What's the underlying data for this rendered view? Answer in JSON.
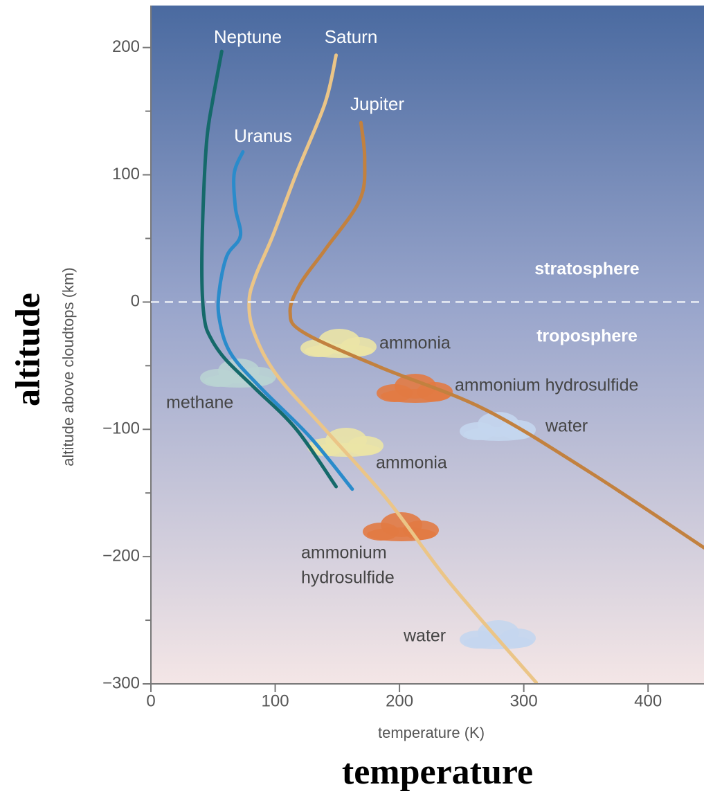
{
  "chart_data": {
    "type": "line",
    "xlabel": "temperature (K)",
    "ylabel": "altitude above cloudtops (km)",
    "outer_xlabel": "temperature",
    "outer_ylabel": "altitude",
    "xlim": [
      0,
      445
    ],
    "ylim": [
      -300,
      233
    ],
    "xticks": [
      0,
      100,
      200,
      300,
      400
    ],
    "yticks": [
      {
        "value": -300,
        "label": "−300"
      },
      {
        "value": -200,
        "label": "−200"
      },
      {
        "value": -100,
        "label": "−100"
      },
      0,
      100,
      200
    ],
    "y_minor_ticks": [
      -250,
      -150,
      -50,
      50,
      150
    ],
    "hline": 0,
    "region_labels": [
      "stratosphere",
      "troposphere"
    ],
    "annotations": [
      [
        "methane"
      ],
      [
        "ammonia"
      ],
      [
        "ammonium hydrosulfide"
      ],
      [
        "water"
      ],
      [
        "ammonia"
      ],
      [
        "ammonium",
        "hydrosulfide"
      ],
      [
        "water"
      ]
    ],
    "series": [
      {
        "name": "Neptune",
        "color": "#15696a",
        "x": [
          57,
          50,
          45,
          42,
          41,
          43,
          48,
          60,
          84,
          117,
          149
        ],
        "y": [
          197,
          160,
          128,
          74,
          20,
          -13,
          -28,
          -45,
          -68,
          -100,
          -145
        ]
      },
      {
        "name": "Saturn",
        "color": "#ebc587",
        "x": [
          149,
          140,
          117,
          98,
          84,
          79,
          83,
          101,
          140,
          190,
          240,
          310
        ],
        "y": [
          194,
          156,
          101,
          52,
          20,
          0,
          -24,
          -57,
          -100,
          -155,
          -220,
          -299
        ]
      },
      {
        "name": "Jupiter",
        "color": "#c2813f",
        "x": [
          169,
          172,
          168,
          140,
          120,
          112,
          123,
          184,
          268,
          352,
          445
        ],
        "y": [
          141,
          112,
          80,
          41,
          14,
          -8,
          -24,
          -51,
          -84,
          -133,
          -193
        ]
      },
      {
        "name": "Uranus",
        "color": "#2a8bcb",
        "x": [
          74,
          67,
          68,
          72,
          61,
          55,
          55,
          64,
          89,
          128,
          162
        ],
        "y": [
          118,
          101,
          74,
          52,
          36,
          9,
          -13,
          -40,
          -68,
          -106,
          -147
        ]
      }
    ]
  }
}
